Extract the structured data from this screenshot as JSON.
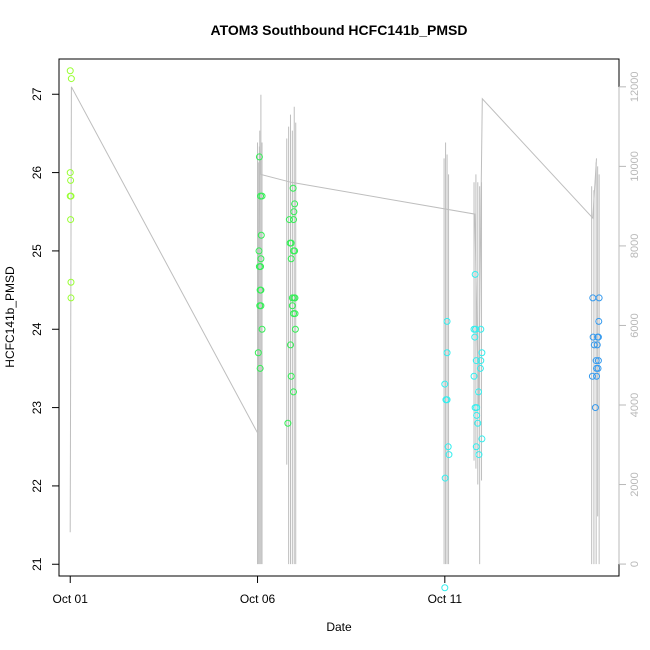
{
  "chart_data": {
    "type": "scatter",
    "title": "ATOM3 Southbound HCFC141b_PMSD",
    "xlabel": "Date",
    "ylabel": "HCFC141b_PMSD",
    "x_ticks": [
      "Oct 01",
      "Oct 06",
      "Oct 11"
    ],
    "y_ticks": [
      "21",
      "22",
      "23",
      "24",
      "25",
      "26",
      "27"
    ],
    "y2_ticks": [
      "0",
      "2000",
      "4000",
      "6000",
      "8000",
      "10000",
      "12000"
    ],
    "xlim": [
      -0.3,
      14.65
    ],
    "ylim": [
      20.85,
      27.45
    ],
    "y2lim": [
      -300,
      12700
    ],
    "series": [
      {
        "kind": "points",
        "points": [
          [
            0.0,
            27.3,
            "#99ff33"
          ],
          [
            0.03,
            27.2,
            "#99ff33"
          ],
          [
            0.0,
            26.0,
            "#99ff33"
          ],
          [
            0.01,
            25.9,
            "#99ff33"
          ],
          [
            0.0,
            25.7,
            "#99ff33"
          ],
          [
            0.02,
            25.7,
            "#99ff33"
          ],
          [
            0.01,
            25.4,
            "#99ff33"
          ],
          [
            0.02,
            24.6,
            "#99ff33"
          ],
          [
            0.02,
            24.4,
            "#99ff33"
          ],
          [
            5.05,
            26.2,
            "#33ee55"
          ],
          [
            5.08,
            25.7,
            "#33ee55"
          ],
          [
            5.12,
            25.7,
            "#33ee55"
          ],
          [
            5.1,
            25.2,
            "#33ee55"
          ],
          [
            5.04,
            25.0,
            "#33ee55"
          ],
          [
            5.09,
            24.9,
            "#33ee55"
          ],
          [
            5.05,
            24.8,
            "#33ee55"
          ],
          [
            5.08,
            24.8,
            "#33ee55"
          ],
          [
            5.07,
            24.5,
            "#33ee55"
          ],
          [
            5.09,
            24.5,
            "#33ee55"
          ],
          [
            5.06,
            24.3,
            "#33ee55"
          ],
          [
            5.09,
            24.3,
            "#33ee55"
          ],
          [
            5.12,
            24.0,
            "#33ee55"
          ],
          [
            5.02,
            23.7,
            "#33ee55"
          ],
          [
            5.07,
            23.5,
            "#33ee55"
          ],
          [
            5.95,
            25.8,
            "#33ee55"
          ],
          [
            5.99,
            25.6,
            "#33ee55"
          ],
          [
            5.97,
            25.5,
            "#33ee55"
          ],
          [
            5.85,
            25.4,
            "#33ee55"
          ],
          [
            5.96,
            25.4,
            "#33ee55"
          ],
          [
            5.87,
            25.1,
            "#33ee55"
          ],
          [
            5.9,
            25.1,
            "#33ee55"
          ],
          [
            5.96,
            25.0,
            "#33ee55"
          ],
          [
            5.99,
            25.0,
            "#33ee55"
          ],
          [
            5.9,
            24.9,
            "#33ee55"
          ],
          [
            5.93,
            24.4,
            "#33ee55"
          ],
          [
            5.97,
            24.4,
            "#33ee55"
          ],
          [
            6.0,
            24.4,
            "#33ee55"
          ],
          [
            5.93,
            24.3,
            "#33ee55"
          ],
          [
            5.96,
            24.2,
            "#33ee55"
          ],
          [
            6.0,
            24.2,
            "#33ee55"
          ],
          [
            6.01,
            24.0,
            "#33ee55"
          ],
          [
            5.88,
            23.8,
            "#33ee55"
          ],
          [
            5.9,
            23.4,
            "#33ee55"
          ],
          [
            5.96,
            23.2,
            "#33ee55"
          ],
          [
            5.81,
            22.8,
            "#33ee55"
          ],
          [
            10.06,
            24.1,
            "#33eeee"
          ],
          [
            10.06,
            23.7,
            "#33eeee"
          ],
          [
            10.0,
            23.3,
            "#33eeee"
          ],
          [
            10.03,
            23.1,
            "#33eeee"
          ],
          [
            10.06,
            23.1,
            "#33eeee"
          ],
          [
            10.09,
            22.5,
            "#33eeee"
          ],
          [
            10.11,
            22.4,
            "#33eeee"
          ],
          [
            10.01,
            22.1,
            "#33eeee"
          ],
          [
            10.0,
            20.7,
            "#33eeee"
          ],
          [
            10.81,
            24.7,
            "#33eeee"
          ],
          [
            10.78,
            24.0,
            "#33eeee"
          ],
          [
            10.82,
            24.0,
            "#33eeee"
          ],
          [
            10.96,
            24.0,
            "#33eeee"
          ],
          [
            10.8,
            23.9,
            "#33eeee"
          ],
          [
            10.99,
            23.7,
            "#33eeee"
          ],
          [
            10.84,
            23.6,
            "#33eeee"
          ],
          [
            10.96,
            23.6,
            "#33eeee"
          ],
          [
            10.95,
            23.5,
            "#33eeee"
          ],
          [
            10.78,
            23.4,
            "#33eeee"
          ],
          [
            10.9,
            23.2,
            "#33eeee"
          ],
          [
            10.81,
            23.0,
            "#33eeee"
          ],
          [
            10.85,
            23.0,
            "#33eeee"
          ],
          [
            10.85,
            22.9,
            "#33eeee"
          ],
          [
            10.88,
            22.8,
            "#33eeee"
          ],
          [
            10.99,
            22.6,
            "#33eeee"
          ],
          [
            10.84,
            22.5,
            "#33eeee"
          ],
          [
            10.91,
            22.4,
            "#33eeee"
          ],
          [
            13.95,
            24.4,
            "#3399ee"
          ],
          [
            14.12,
            24.4,
            "#3399ee"
          ],
          [
            13.96,
            23.9,
            "#3399ee"
          ],
          [
            14.08,
            23.9,
            "#3399ee"
          ],
          [
            14.1,
            23.9,
            "#3399ee"
          ],
          [
            13.99,
            23.8,
            "#3399ee"
          ],
          [
            14.07,
            23.8,
            "#3399ee"
          ],
          [
            14.04,
            23.6,
            "#3399ee"
          ],
          [
            14.1,
            23.6,
            "#3399ee"
          ],
          [
            14.05,
            23.5,
            "#3399ee"
          ],
          [
            14.09,
            23.5,
            "#3399ee"
          ],
          [
            13.94,
            23.4,
            "#3399ee"
          ],
          [
            14.05,
            23.4,
            "#3399ee"
          ],
          [
            14.02,
            23.0,
            "#3399ee"
          ],
          [
            14.11,
            24.1,
            "#3399ee"
          ]
        ]
      },
      {
        "kind": "line",
        "axis": "right",
        "color": "#bebebe",
        "points": [
          [
            0.0,
            800
          ],
          [
            0.03,
            12000
          ],
          [
            5.0,
            3300
          ],
          [
            5.05,
            10500
          ],
          [
            5.08,
            9800
          ],
          [
            5.9,
            9600
          ],
          [
            10.8,
            8800
          ],
          [
            10.9,
            4000
          ],
          [
            11.0,
            11700
          ],
          [
            13.95,
            8700
          ],
          [
            14.05,
            10200
          ]
        ],
        "spikes": [
          [
            5.0,
            0,
            10600
          ],
          [
            5.03,
            0,
            10100
          ],
          [
            5.06,
            0,
            10900
          ],
          [
            5.09,
            0,
            11800
          ],
          [
            5.12,
            0,
            10600
          ],
          [
            5.78,
            2500,
            10700
          ],
          [
            5.83,
            0,
            11000
          ],
          [
            5.88,
            0,
            11300
          ],
          [
            5.93,
            0,
            10900
          ],
          [
            5.98,
            0,
            11500
          ],
          [
            6.02,
            0,
            11100
          ],
          [
            9.98,
            0,
            10200
          ],
          [
            10.02,
            0,
            10600
          ],
          [
            10.06,
            0,
            10300
          ],
          [
            10.1,
            0,
            9800
          ],
          [
            10.78,
            2600,
            9600
          ],
          [
            10.83,
            2400,
            9800
          ],
          [
            10.88,
            2000,
            9600
          ],
          [
            10.93,
            0,
            9500
          ],
          [
            10.98,
            2100,
            9600
          ],
          [
            13.92,
            0,
            9500
          ],
          [
            13.98,
            0,
            9400
          ],
          [
            14.04,
            0,
            10100
          ],
          [
            14.08,
            1200,
            10000
          ],
          [
            14.12,
            0,
            9800
          ]
        ]
      }
    ]
  }
}
